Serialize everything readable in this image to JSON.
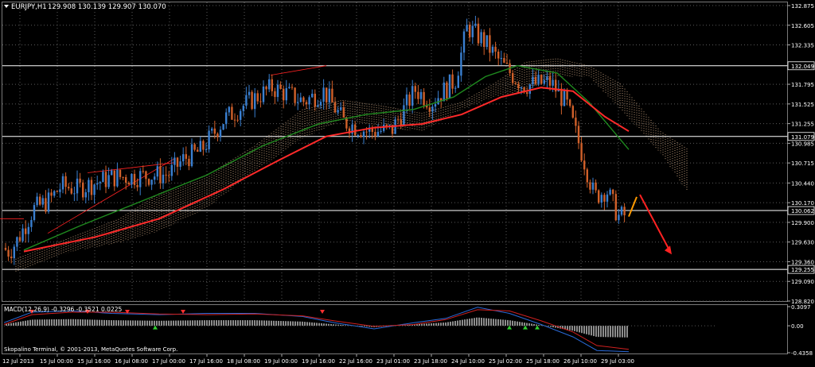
{
  "header": {
    "symbol": "EURJPY,H1",
    "ohlc": "129.908 130.139 129.907 130.070"
  },
  "macd": {
    "label": "MACD(12,26,9) -0.3296 -0.3521 0.0225"
  },
  "footer": {
    "copyright": "Skopalino Terminal, © 2001-2013, MetaQuotes Software Corp."
  },
  "colors": {
    "background": "#000000",
    "bull": "#3a7fd0",
    "bear": "#d0602a",
    "ma_slow": "#ff2a2a",
    "ma_fast": "#1f8a1f",
    "cloud": "#d8b08a",
    "hline": "#ffffff",
    "macd_line": "#2a6ad8",
    "signal_line": "#d02020",
    "hist": "#c8c8c8",
    "arrow_red": "#ff2222",
    "arrow_orange": "#ff9a00"
  },
  "chart_data": {
    "type": "candlestick",
    "price_axis": {
      "min": 128.82,
      "max": 132.875,
      "ticks": [
        "132.875",
        "132.605",
        "132.335",
        "132.049",
        "131.795",
        "131.525",
        "131.255",
        "131.079",
        "130.985",
        "130.715",
        "130.440",
        "130.170",
        "130.062",
        "129.900",
        "129.630",
        "129.360",
        "129.255",
        "129.090",
        "128.820"
      ],
      "highlighted": [
        "132.049",
        "131.079",
        "130.062",
        "129.255"
      ]
    },
    "horizontal_lines": [
      132.049,
      131.079,
      130.062,
      129.255
    ],
    "time_labels": [
      "12 Jul 2013",
      "15 Jul 00:00",
      "15 Jul 16:00",
      "16 Jul 08:00",
      "17 Jul 00:00",
      "17 Jul 16:00",
      "18 Jul 08:00",
      "19 Jul 00:00",
      "19 Jul 16:00",
      "22 Jul 16:00",
      "23 Jul 01:00",
      "23 Jul 18:00",
      "24 Jul 10:00",
      "25 Jul 02:00",
      "25 Jul 18:00",
      "26 Jul 10:00",
      "29 Jul 03:00"
    ],
    "macd_axis": {
      "ticks": [
        "0.3097",
        "0.00",
        "-0.4358"
      ]
    }
  }
}
